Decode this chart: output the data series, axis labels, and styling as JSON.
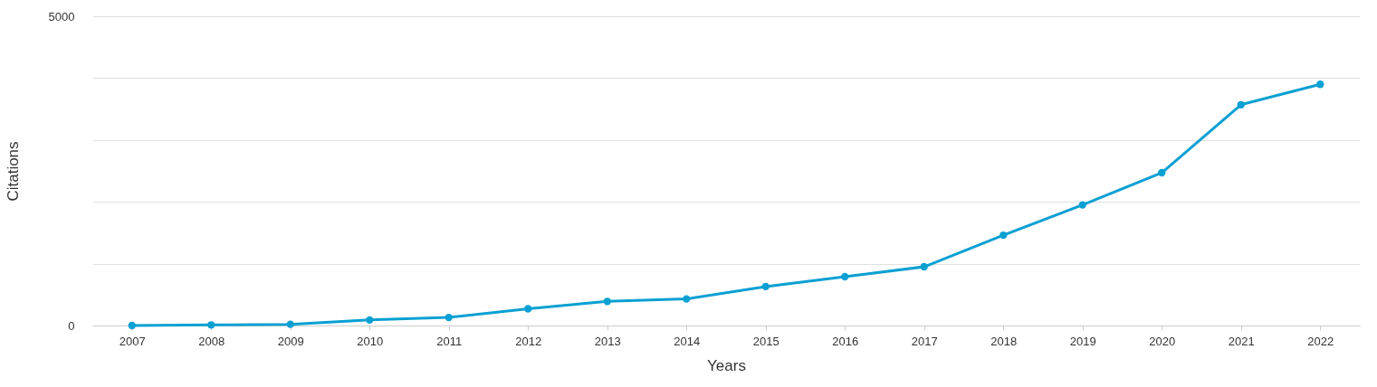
{
  "chart_data": {
    "type": "line",
    "xlabel": "Years",
    "ylabel": "Citations",
    "categories": [
      "2007",
      "2008",
      "2009",
      "2010",
      "2011",
      "2012",
      "2013",
      "2014",
      "2015",
      "2016",
      "2017",
      "2018",
      "2019",
      "2020",
      "2021",
      "2022"
    ],
    "series": [
      {
        "color": "#0aa0d2",
        "values": [
          0,
          10,
          20,
          90,
          130,
          270,
          390,
          430,
          630,
          790,
          950,
          1460,
          1950,
          2470,
          3570,
          3900
        ]
      }
    ],
    "ylim": [
      0,
      5000
    ],
    "yticks": [
      0,
      {
        "value": 1000,
        "label": null
      },
      {
        "value": 2000,
        "label": null
      },
      {
        "value": 3000,
        "label": null
      },
      {
        "value": 4000,
        "label": null
      },
      5000
    ],
    "grid": "y",
    "marker": "circle",
    "line_style": "solid",
    "legend": false
  }
}
